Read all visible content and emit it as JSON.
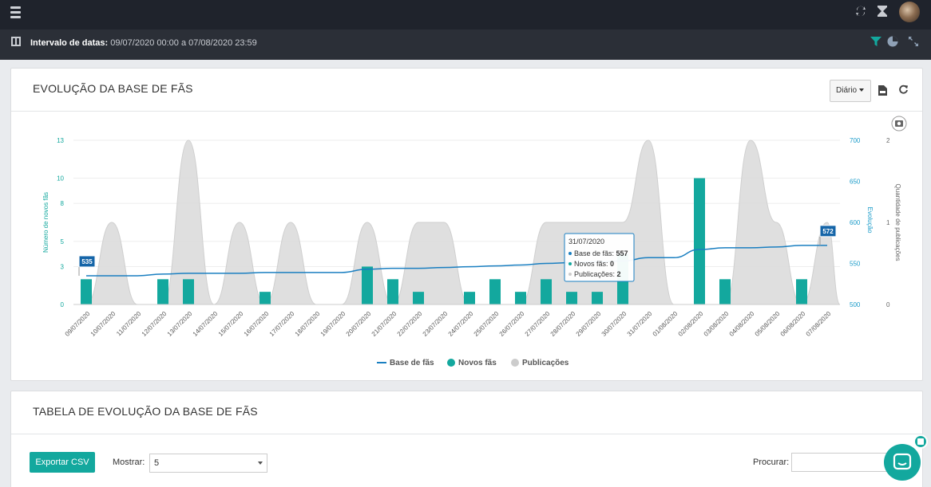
{
  "header": {
    "date_label": "Intervalo de datas:",
    "date_value": "09/07/2020 00:00 a 07/08/2020 23:59"
  },
  "icons": {
    "menu": "hamburger-icon",
    "sync": "sync-icon",
    "hourglass": "hourglass-icon",
    "layout": "layout-icon",
    "filter": "filter-icon",
    "pie": "pie-chart-icon",
    "expand": "expand-icon",
    "pdf": "pdf-file-icon",
    "refresh": "refresh-icon",
    "camera": "camera-icon",
    "chat": "chat-icon"
  },
  "colors": {
    "accent": "#13a89e",
    "line": "#1a7fc1",
    "area": "#d9d9d9",
    "axis_left": "#13a89e",
    "axis_right": "#1a9bc9"
  },
  "chart_panel": {
    "title": "EVOLUÇÃO DA BASE DE FÃS",
    "period_button": "Diário"
  },
  "chart_data": {
    "type": "bar",
    "categories": [
      "09/07/2020",
      "10/07/2020",
      "11/07/2020",
      "12/07/2020",
      "13/07/2020",
      "14/07/2020",
      "15/07/2020",
      "16/07/2020",
      "17/07/2020",
      "18/07/2020",
      "19/07/2020",
      "20/07/2020",
      "21/07/2020",
      "22/07/2020",
      "23/07/2020",
      "24/07/2020",
      "25/07/2020",
      "26/07/2020",
      "27/07/2020",
      "28/07/2020",
      "29/07/2020",
      "30/07/2020",
      "31/07/2020",
      "01/08/2020",
      "02/08/2020",
      "03/08/2020",
      "04/08/2020",
      "05/08/2020",
      "06/08/2020",
      "07/08/2020"
    ],
    "series": [
      {
        "name": "Base de fãs",
        "type": "line",
        "axis": "Evolução",
        "values": [
          535,
          535,
          535,
          537,
          538,
          538,
          538,
          539,
          539,
          539,
          539,
          543,
          544,
          544,
          545,
          546,
          547,
          548,
          550,
          551,
          552,
          553,
          557,
          557,
          567,
          569,
          569,
          570,
          572,
          572
        ]
      },
      {
        "name": "Novos fãs",
        "type": "bar",
        "axis": "Número de novos fãs",
        "values": [
          2,
          0,
          0,
          2,
          2,
          0,
          0,
          1,
          0,
          0,
          0,
          3,
          2,
          1,
          0,
          1,
          2,
          1,
          2,
          1,
          1,
          4,
          0,
          0,
          10,
          2,
          0,
          0,
          2,
          0
        ]
      },
      {
        "name": "Publicações",
        "type": "area",
        "axis": "Quantidade de publicações",
        "values": [
          0,
          1,
          0,
          0,
          2,
          0,
          1,
          0,
          1,
          0,
          0,
          1,
          0,
          1,
          1,
          0,
          0,
          0,
          1,
          1,
          1,
          1,
          2,
          0,
          0,
          0,
          2,
          1,
          0,
          1
        ]
      }
    ],
    "left_axis": {
      "label": "Número de novos fãs",
      "ticks": [
        "0",
        "3",
        "5",
        "8",
        "10",
        "13"
      ],
      "range": [
        0,
        13
      ]
    },
    "middle_axis": {
      "label": "Evolução",
      "ticks": [
        "500",
        "550",
        "600",
        "650",
        "700"
      ],
      "range": [
        500,
        700
      ]
    },
    "right_axis": {
      "label": "Quantidade de publicações",
      "ticks": [
        "0",
        "1",
        "2"
      ],
      "range": [
        0,
        2
      ]
    },
    "flags": [
      {
        "index": 0,
        "text": "535"
      },
      {
        "index": 29,
        "text": "572"
      }
    ],
    "tooltip": {
      "date": "31/07/2020",
      "rows": [
        {
          "label": "Base de fãs",
          "value": "557"
        },
        {
          "label": "Novos fãs",
          "value": "0"
        },
        {
          "label": "Publicações",
          "value": "2"
        }
      ]
    },
    "legend": [
      "Base de fãs",
      "Novos fãs",
      "Publicações"
    ],
    "legend_position": "bottom"
  },
  "table_panel": {
    "title": "TABELA DE EVOLUÇÃO DA BASE DE FÃS",
    "export_button": "Exportar CSV",
    "show_label": "Mostrar:",
    "show_value": "5",
    "search_label": "Procurar:"
  }
}
